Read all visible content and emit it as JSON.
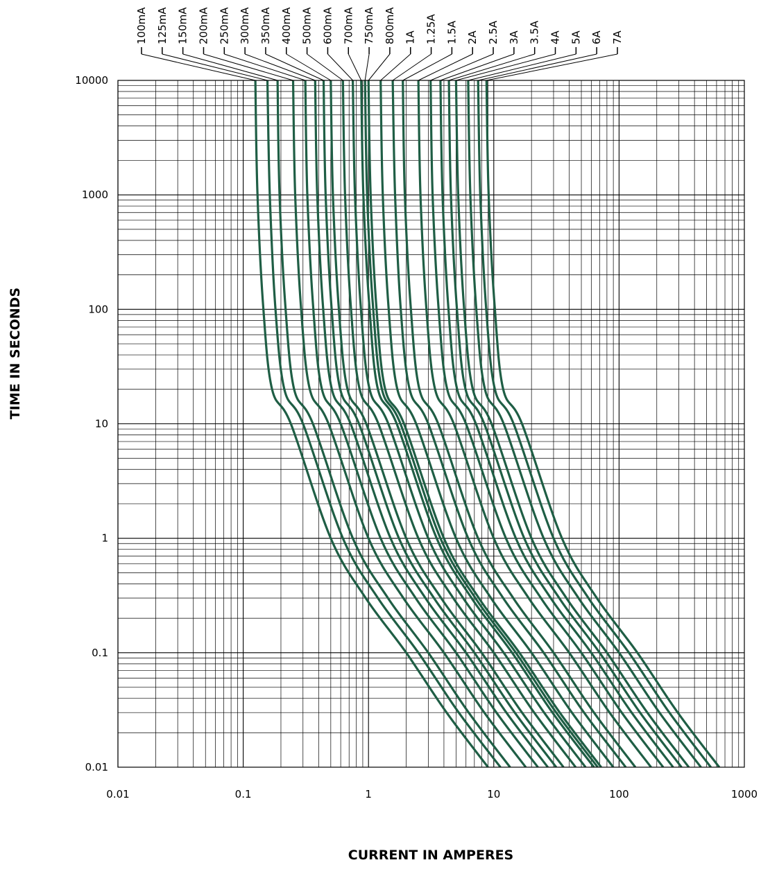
{
  "chart_data": {
    "type": "line",
    "title": "",
    "xlabel": "CURRENT IN AMPERES",
    "ylabel": "TIME IN SECONDS",
    "xscale": "log",
    "yscale": "log",
    "xlim": [
      0.01,
      1000
    ],
    "ylim": [
      0.01,
      10000
    ],
    "grid": true,
    "legend_placement": "top",
    "x_tick_labels": [
      "0.01",
      "0.1",
      "1",
      "10",
      "100",
      "1000"
    ],
    "y_tick_labels": [
      "10000",
      "1000",
      "100",
      "10",
      "1",
      "0.1",
      "0.01"
    ],
    "line_color": "#1f5e45",
    "curve_shape": {
      "note_units": "each series: x = current in amperes, y = time in seconds",
      "points_per_series_multiplier_of_rating": [
        1.25,
        1.3,
        1.45,
        1.7,
        2.4,
        5,
        9.5,
        20,
        42,
        90
      ],
      "points_time_s": [
        10000,
        1000,
        100,
        20,
        10,
        1,
        0.3,
        0.1,
        0.03,
        0.01
      ]
    },
    "series": [
      {
        "name": "100mA",
        "rating_A": 0.1,
        "x": [
          0.125,
          0.13,
          0.145,
          0.17,
          0.24,
          0.5,
          0.95,
          2.0,
          4.2,
          9.0
        ],
        "y": [
          10000,
          1000,
          100,
          20,
          10,
          1,
          0.3,
          0.1,
          0.03,
          0.01
        ]
      },
      {
        "name": "125mA",
        "rating_A": 0.125,
        "x": [
          0.156,
          0.163,
          0.181,
          0.213,
          0.3,
          0.625,
          1.19,
          2.5,
          5.25,
          11.3
        ],
        "y": [
          10000,
          1000,
          100,
          20,
          10,
          1,
          0.3,
          0.1,
          0.03,
          0.01
        ]
      },
      {
        "name": "150mA",
        "rating_A": 0.15,
        "x": [
          0.188,
          0.195,
          0.218,
          0.255,
          0.36,
          0.75,
          1.43,
          3.0,
          6.3,
          13.5
        ],
        "y": [
          10000,
          1000,
          100,
          20,
          10,
          1,
          0.3,
          0.1,
          0.03,
          0.01
        ]
      },
      {
        "name": "200mA",
        "rating_A": 0.2,
        "x": [
          0.25,
          0.26,
          0.29,
          0.34,
          0.48,
          1.0,
          1.9,
          4.0,
          8.4,
          18.0
        ],
        "y": [
          10000,
          1000,
          100,
          20,
          10,
          1,
          0.3,
          0.1,
          0.03,
          0.01
        ]
      },
      {
        "name": "250mA",
        "rating_A": 0.25,
        "x": [
          0.313,
          0.325,
          0.363,
          0.425,
          0.6,
          1.25,
          2.38,
          5.0,
          10.5,
          22.5
        ],
        "y": [
          10000,
          1000,
          100,
          20,
          10,
          1,
          0.3,
          0.1,
          0.03,
          0.01
        ]
      },
      {
        "name": "300mA",
        "rating_A": 0.3,
        "x": [
          0.375,
          0.39,
          0.435,
          0.51,
          0.72,
          1.5,
          2.85,
          6.0,
          12.6,
          27.0
        ],
        "y": [
          10000,
          1000,
          100,
          20,
          10,
          1,
          0.3,
          0.1,
          0.03,
          0.01
        ]
      },
      {
        "name": "350mA",
        "rating_A": 0.35,
        "x": [
          0.438,
          0.455,
          0.508,
          0.595,
          0.84,
          1.75,
          3.33,
          7.0,
          14.7,
          31.5
        ],
        "y": [
          10000,
          1000,
          100,
          20,
          10,
          1,
          0.3,
          0.1,
          0.03,
          0.01
        ]
      },
      {
        "name": "400mA",
        "rating_A": 0.4,
        "x": [
          0.5,
          0.52,
          0.58,
          0.68,
          0.96,
          2.0,
          3.8,
          8.0,
          16.8,
          36.0
        ],
        "y": [
          10000,
          1000,
          100,
          20,
          10,
          1,
          0.3,
          0.1,
          0.03,
          0.01
        ]
      },
      {
        "name": "500mA",
        "rating_A": 0.5,
        "x": [
          0.625,
          0.65,
          0.725,
          0.85,
          1.2,
          2.5,
          4.75,
          10.0,
          21.0,
          45.0
        ],
        "y": [
          10000,
          1000,
          100,
          20,
          10,
          1,
          0.3,
          0.1,
          0.03,
          0.01
        ]
      },
      {
        "name": "600mA",
        "rating_A": 0.6,
        "x": [
          0.75,
          0.78,
          0.87,
          1.02,
          1.44,
          3.0,
          5.7,
          12.0,
          25.2,
          54.0
        ],
        "y": [
          10000,
          1000,
          100,
          20,
          10,
          1,
          0.3,
          0.1,
          0.03,
          0.01
        ]
      },
      {
        "name": "700mA",
        "rating_A": 0.7,
        "x": [
          0.875,
          0.91,
          1.02,
          1.19,
          1.68,
          3.5,
          6.65,
          14.0,
          29.4,
          63.0
        ],
        "y": [
          10000,
          1000,
          100,
          20,
          10,
          1,
          0.3,
          0.1,
          0.03,
          0.01
        ]
      },
      {
        "name": "750mA",
        "rating_A": 0.75,
        "x": [
          0.938,
          0.975,
          1.09,
          1.28,
          1.8,
          3.75,
          7.13,
          15.0,
          31.5,
          67.5
        ],
        "y": [
          10000,
          1000,
          100,
          20,
          10,
          1,
          0.3,
          0.1,
          0.03,
          0.01
        ]
      },
      {
        "name": "800mA",
        "rating_A": 0.8,
        "x": [
          1.0,
          1.04,
          1.16,
          1.36,
          1.92,
          4.0,
          7.6,
          16.0,
          33.6,
          72.0
        ],
        "y": [
          10000,
          1000,
          100,
          20,
          10,
          1,
          0.3,
          0.1,
          0.03,
          0.01
        ]
      },
      {
        "name": "1A",
        "rating_A": 1.0,
        "x": [
          1.25,
          1.3,
          1.45,
          1.7,
          2.4,
          5.0,
          9.5,
          20.0,
          42.0,
          90.0
        ],
        "y": [
          10000,
          1000,
          100,
          20,
          10,
          1,
          0.3,
          0.1,
          0.03,
          0.01
        ]
      },
      {
        "name": "1.25A",
        "rating_A": 1.25,
        "x": [
          1.56,
          1.63,
          1.81,
          2.13,
          3.0,
          6.25,
          11.9,
          25.0,
          52.5,
          113.0
        ],
        "y": [
          10000,
          1000,
          100,
          20,
          10,
          1,
          0.3,
          0.1,
          0.03,
          0.01
        ]
      },
      {
        "name": "1.5A",
        "rating_A": 1.5,
        "x": [
          1.88,
          1.95,
          2.18,
          2.55,
          3.6,
          7.5,
          14.3,
          30.0,
          63.0,
          135.0
        ],
        "y": [
          10000,
          1000,
          100,
          20,
          10,
          1,
          0.3,
          0.1,
          0.03,
          0.01
        ]
      },
      {
        "name": "2A",
        "rating_A": 2.0,
        "x": [
          2.5,
          2.6,
          2.9,
          3.4,
          4.8,
          10.0,
          19.0,
          40.0,
          84.0,
          180.0
        ],
        "y": [
          10000,
          1000,
          100,
          20,
          10,
          1,
          0.3,
          0.1,
          0.03,
          0.01
        ]
      },
      {
        "name": "2.5A",
        "rating_A": 2.5,
        "x": [
          3.13,
          3.25,
          3.63,
          4.25,
          6.0,
          12.5,
          23.8,
          50.0,
          105.0,
          225.0
        ],
        "y": [
          10000,
          1000,
          100,
          20,
          10,
          1,
          0.3,
          0.1,
          0.03,
          0.01
        ]
      },
      {
        "name": "3A",
        "rating_A": 3.0,
        "x": [
          3.75,
          3.9,
          4.35,
          5.1,
          7.2,
          15.0,
          28.5,
          60.0,
          126.0,
          270.0
        ],
        "y": [
          10000,
          1000,
          100,
          20,
          10,
          1,
          0.3,
          0.1,
          0.03,
          0.01
        ]
      },
      {
        "name": "3.5A",
        "rating_A": 3.5,
        "x": [
          4.38,
          4.55,
          5.08,
          5.95,
          8.4,
          17.5,
          33.3,
          70.0,
          147.0,
          315.0
        ],
        "y": [
          10000,
          1000,
          100,
          20,
          10,
          1,
          0.3,
          0.1,
          0.03,
          0.01
        ]
      },
      {
        "name": "4A",
        "rating_A": 4.0,
        "x": [
          5.0,
          5.2,
          5.8,
          6.8,
          9.6,
          20.0,
          38.0,
          80.0,
          168.0,
          360.0
        ],
        "y": [
          10000,
          1000,
          100,
          20,
          10,
          1,
          0.3,
          0.1,
          0.03,
          0.01
        ]
      },
      {
        "name": "5A",
        "rating_A": 5.0,
        "x": [
          6.25,
          6.5,
          7.25,
          8.5,
          12.0,
          25.0,
          47.5,
          100.0,
          210.0,
          450.0
        ],
        "y": [
          10000,
          1000,
          100,
          20,
          10,
          1,
          0.3,
          0.1,
          0.03,
          0.01
        ]
      },
      {
        "name": "6A",
        "rating_A": 6.0,
        "x": [
          7.5,
          7.8,
          8.7,
          10.2,
          14.4,
          30.0,
          57.0,
          120.0,
          252.0,
          540.0
        ],
        "y": [
          10000,
          1000,
          100,
          20,
          10,
          1,
          0.3,
          0.1,
          0.03,
          0.01
        ]
      },
      {
        "name": "7A",
        "rating_A": 7.0,
        "x": [
          8.75,
          9.1,
          10.2,
          11.9,
          16.8,
          35.0,
          66.5,
          140.0,
          294.0,
          630.0
        ],
        "y": [
          10000,
          1000,
          100,
          20,
          10,
          1,
          0.3,
          0.1,
          0.03,
          0.01
        ]
      }
    ]
  }
}
